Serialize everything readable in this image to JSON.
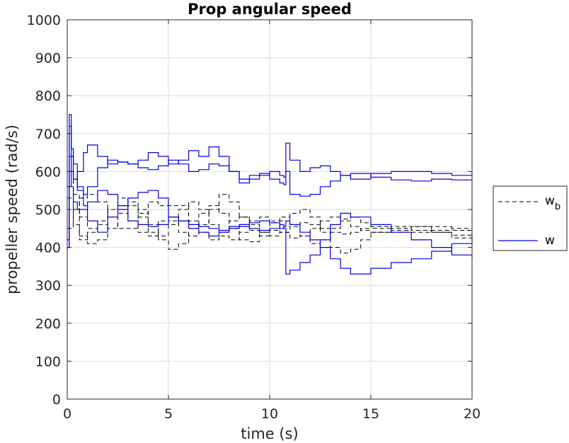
{
  "chart_data": {
    "type": "line",
    "title": "Prop angular speed",
    "xlabel": "time (s)",
    "ylabel": "propeller speed (rad/s)",
    "xlim": [
      0,
      20
    ],
    "ylim": [
      0,
      1000
    ],
    "xticks": [
      0,
      5,
      10,
      15,
      20
    ],
    "yticks": [
      0,
      100,
      200,
      300,
      400,
      500,
      600,
      700,
      800,
      900,
      1000
    ],
    "grid": true,
    "legend_position": "right",
    "legend": {
      "entries": [
        {
          "label": "w",
          "subscript": "b",
          "style": "dashed",
          "color": "#000000"
        },
        {
          "label": "w",
          "subscript": "",
          "style": "solid",
          "color": "#0000e6"
        }
      ]
    },
    "series": [
      {
        "group": "wb",
        "style": "dashed",
        "color": "#000000",
        "x": [
          0,
          0.3,
          0.6,
          1,
          1.5,
          2,
          2.5,
          3,
          3.5,
          4,
          4.5,
          5,
          5.5,
          6,
          6.5,
          7,
          7.5,
          8,
          8.5,
          9,
          9.5,
          10,
          10.5,
          11,
          11.5,
          12,
          12.5,
          13,
          13.5,
          14,
          14.5,
          15,
          16,
          17,
          18,
          19,
          20
        ],
        "y": [
          560,
          500,
          420,
          440,
          470,
          500,
          510,
          470,
          440,
          430,
          470,
          510,
          510,
          470,
          440,
          420,
          440,
          470,
          480,
          460,
          440,
          430,
          440,
          455,
          465,
          460,
          450,
          440,
          435,
          440,
          450,
          455,
          450,
          445,
          440,
          432,
          430
        ]
      },
      {
        "group": "wb",
        "style": "dashed",
        "color": "#000000",
        "x": [
          0,
          0.3,
          0.6,
          1,
          1.5,
          2,
          2.5,
          3,
          3.5,
          4,
          4.5,
          5,
          5.5,
          6,
          6.5,
          7,
          7.5,
          8,
          8.5,
          9,
          9.5,
          10,
          10.5,
          11,
          11.5,
          12,
          12.5,
          13,
          13.5,
          14,
          14.5,
          15,
          16,
          17,
          18,
          19,
          20
        ],
        "y": [
          530,
          460,
          430,
          410,
          420,
          450,
          490,
          510,
          500,
          460,
          420,
          395,
          410,
          450,
          490,
          510,
          490,
          450,
          420,
          415,
          440,
          470,
          480,
          460,
          430,
          410,
          420,
          450,
          475,
          480,
          465,
          450,
          440,
          440,
          445,
          450,
          452
        ]
      },
      {
        "group": "wb",
        "style": "dashed",
        "color": "#000000",
        "x": [
          0,
          0.3,
          0.6,
          1,
          1.5,
          2,
          2.5,
          3,
          3.5,
          4,
          4.5,
          5,
          5.5,
          6,
          6.5,
          7,
          7.5,
          8,
          8.5,
          9,
          9.5,
          10,
          10.5,
          11,
          11.5,
          12,
          12.5,
          13,
          13.5,
          14,
          14.5,
          15,
          16,
          17,
          18,
          19,
          20
        ],
        "y": [
          600,
          540,
          480,
          450,
          460,
          500,
          530,
          520,
          480,
          440,
          430,
          460,
          500,
          520,
          500,
          460,
          430,
          420,
          440,
          470,
          480,
          465,
          440,
          425,
          430,
          450,
          470,
          480,
          470,
          455,
          445,
          440,
          445,
          455,
          455,
          445,
          440
        ]
      },
      {
        "group": "wb",
        "style": "dashed",
        "color": "#000000",
        "x": [
          0,
          0.3,
          0.6,
          1,
          1.5,
          2,
          2.5,
          3,
          3.5,
          4,
          4.5,
          5,
          5.5,
          6,
          6.5,
          7,
          7.5,
          8,
          8.5,
          9,
          9.5,
          10,
          10.5,
          11,
          11.5,
          12,
          12.5,
          13,
          13.5,
          14,
          14.5,
          15,
          16,
          17,
          18,
          19,
          20
        ],
        "y": [
          450,
          500,
          530,
          540,
          520,
          480,
          450,
          450,
          490,
          520,
          510,
          470,
          440,
          430,
          460,
          500,
          540,
          520,
          480,
          445,
          430,
          445,
          470,
          490,
          500,
          480,
          440,
          400,
          385,
          395,
          420,
          440,
          455,
          455,
          440,
          425,
          418
        ]
      },
      {
        "group": "w",
        "style": "solid",
        "color": "#0000e6",
        "x": [
          0,
          0.1,
          0.2,
          0.3,
          0.5,
          0.8,
          1,
          1.5,
          2,
          2.5,
          3,
          3.5,
          4,
          4.5,
          5,
          5.5,
          6,
          6.5,
          7,
          7.5,
          8,
          8.5,
          9,
          9.5,
          10,
          10.5,
          10.7,
          10.8,
          11,
          11.5,
          12,
          12.5,
          13,
          13.5,
          14,
          15,
          16,
          17,
          18,
          19,
          20
        ],
        "y": [
          400,
          750,
          640,
          580,
          600,
          650,
          670,
          640,
          620,
          625,
          620,
          630,
          650,
          640,
          620,
          630,
          655,
          640,
          665,
          640,
          600,
          570,
          580,
          590,
          600,
          590,
          585,
          675,
          630,
          600,
          610,
          615,
          600,
          590,
          580,
          595,
          600,
          600,
          595,
          590,
          598
        ]
      },
      {
        "group": "w",
        "style": "solid",
        "color": "#0000e6",
        "x": [
          0,
          0.1,
          0.2,
          0.3,
          0.5,
          0.8,
          1,
          1.5,
          2,
          2.5,
          3,
          3.5,
          4,
          4.5,
          5,
          5.5,
          6,
          6.5,
          7,
          7.5,
          8,
          8.5,
          9,
          9.5,
          10,
          10.5,
          10.7,
          10.8,
          11,
          11.5,
          12,
          12.5,
          13,
          13.5,
          14,
          15,
          16,
          17,
          18,
          19,
          20
        ],
        "y": [
          420,
          720,
          660,
          620,
          560,
          540,
          560,
          610,
          630,
          625,
          620,
          610,
          605,
          615,
          630,
          620,
          600,
          605,
          620,
          615,
          600,
          580,
          590,
          595,
          580,
          570,
          565,
          600,
          540,
          535,
          540,
          560,
          575,
          590,
          595,
          585,
          578,
          575,
          580,
          578,
          572
        ]
      },
      {
        "group": "w",
        "style": "solid",
        "color": "#0000e6",
        "x": [
          0,
          0.1,
          0.2,
          0.3,
          0.5,
          0.8,
          1,
          1.5,
          2,
          2.5,
          3,
          3.5,
          4,
          4.5,
          5,
          5.5,
          6,
          6.5,
          7,
          7.5,
          8,
          8.5,
          9,
          9.5,
          10,
          10.5,
          10.7,
          10.8,
          11,
          11.5,
          12,
          12.5,
          13,
          13.5,
          14,
          15,
          16,
          17,
          18,
          19,
          20
        ],
        "y": [
          400,
          640,
          600,
          580,
          550,
          510,
          470,
          440,
          480,
          510,
          530,
          545,
          550,
          530,
          480,
          470,
          460,
          455,
          450,
          445,
          455,
          460,
          465,
          470,
          465,
          460,
          450,
          330,
          340,
          360,
          380,
          420,
          460,
          490,
          480,
          460,
          440,
          420,
          400,
          380,
          370
        ]
      },
      {
        "group": "w",
        "style": "solid",
        "color": "#0000e6",
        "x": [
          0,
          0.1,
          0.2,
          0.3,
          0.5,
          0.8,
          1,
          1.5,
          2,
          2.5,
          3,
          3.5,
          4,
          4.5,
          5,
          5.5,
          6,
          6.5,
          7,
          7.5,
          8,
          8.5,
          9,
          9.5,
          10,
          10.5,
          10.7,
          10.8,
          11,
          11.5,
          12,
          12.5,
          13,
          13.5,
          14,
          15,
          16,
          17,
          18,
          19,
          20
        ],
        "y": [
          420,
          600,
          560,
          520,
          500,
          500,
          520,
          550,
          540,
          500,
          470,
          460,
          455,
          460,
          480,
          470,
          450,
          440,
          430,
          440,
          450,
          455,
          450,
          445,
          450,
          450,
          455,
          470,
          460,
          440,
          420,
          400,
          370,
          345,
          330,
          345,
          360,
          370,
          390,
          410,
          430
        ]
      }
    ]
  }
}
